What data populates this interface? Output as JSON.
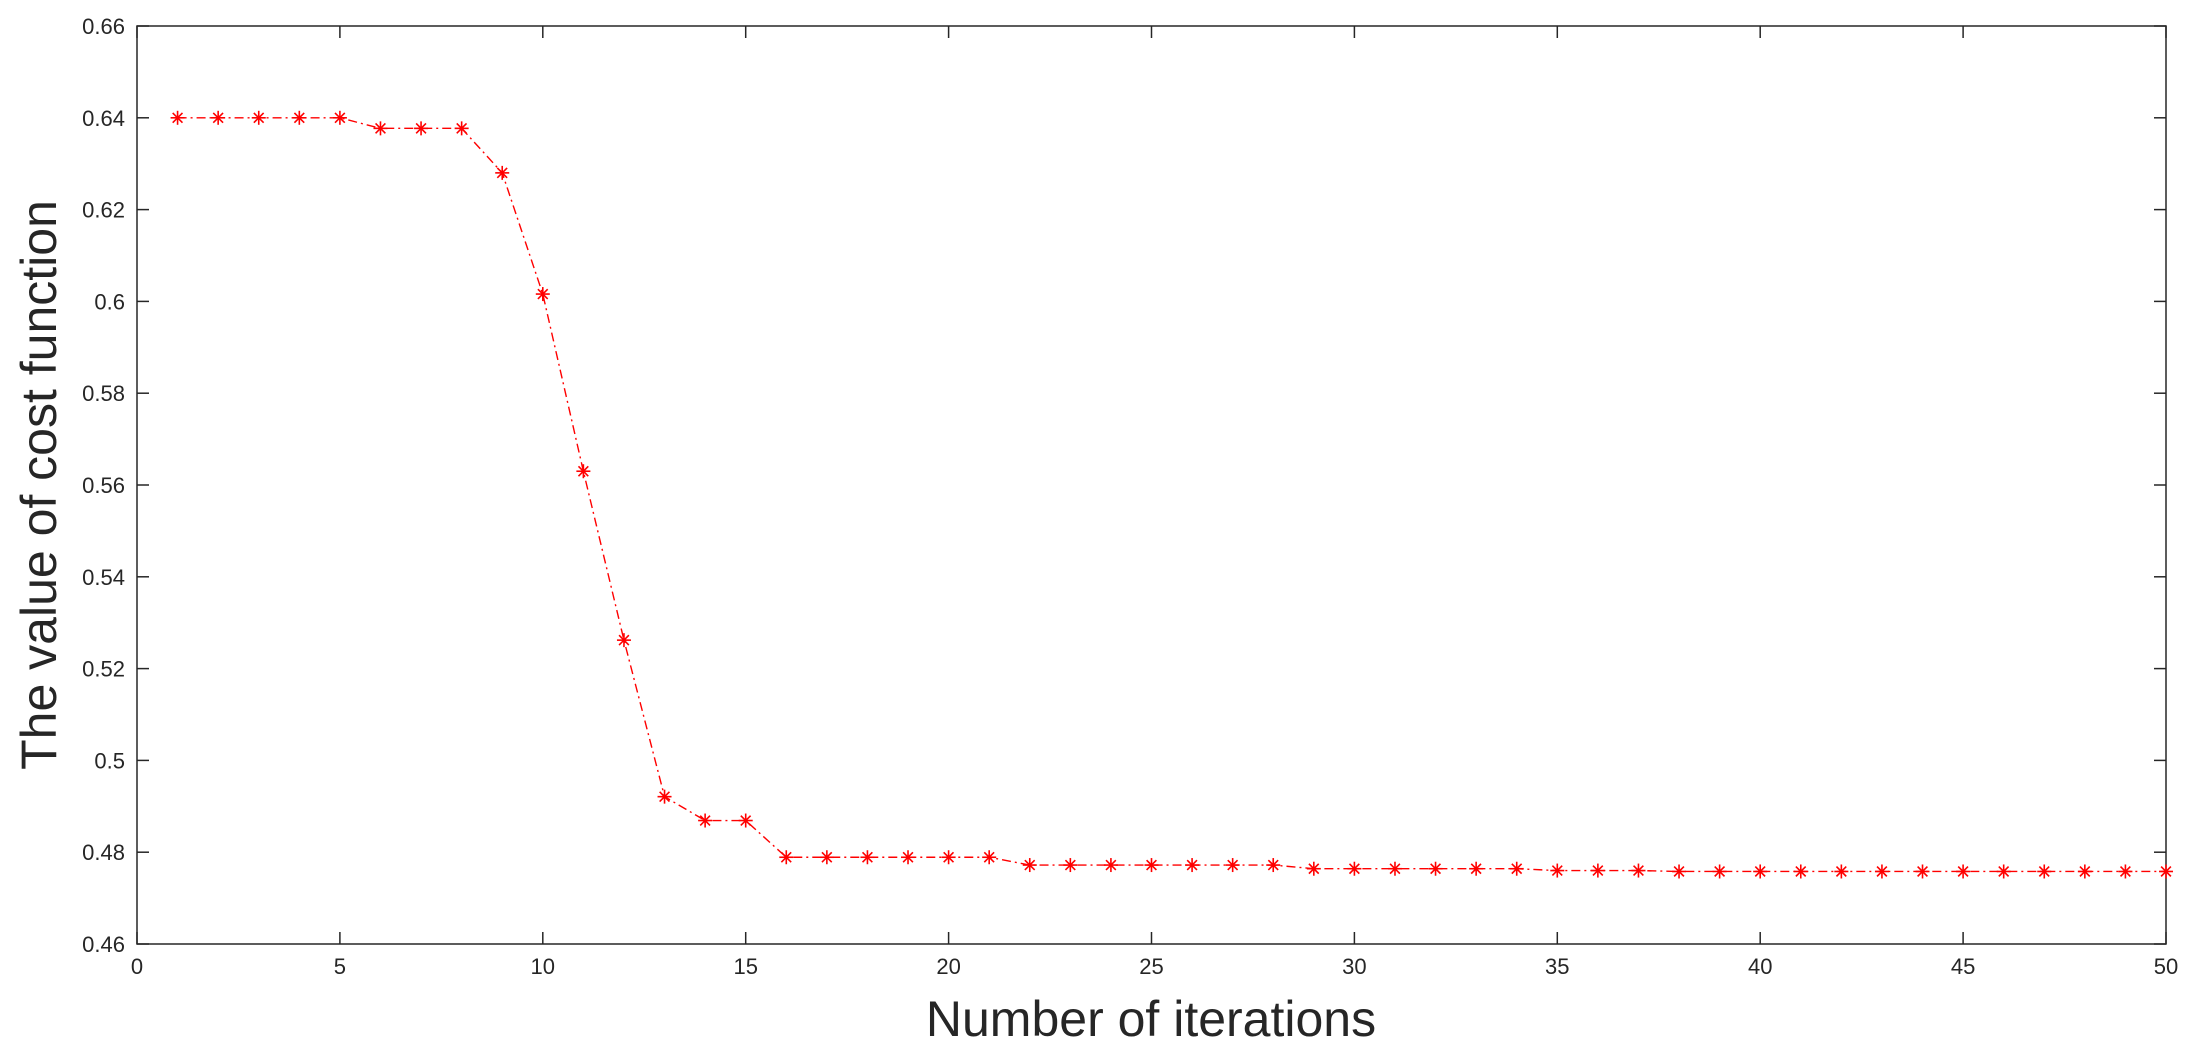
{
  "chart_data": {
    "type": "line",
    "title": "",
    "xlabel": "Number of iterations",
    "ylabel": "The value of cost function",
    "xlim": [
      0,
      50
    ],
    "ylim": [
      0.46,
      0.66
    ],
    "xticks": [
      0,
      5,
      10,
      15,
      20,
      25,
      30,
      35,
      40,
      45,
      50
    ],
    "yticks": [
      0.46,
      0.48,
      0.5,
      0.52,
      0.54,
      0.56,
      0.58,
      0.6,
      0.62,
      0.64,
      0.66
    ],
    "xtick_labels": [
      "0",
      "5",
      "10",
      "15",
      "20",
      "25",
      "30",
      "35",
      "40",
      "45",
      "50"
    ],
    "ytick_labels": [
      "0.46",
      "0.48",
      "0.5",
      "0.52",
      "0.54",
      "0.56",
      "0.58",
      "0.6",
      "0.62",
      "0.64",
      "0.66"
    ],
    "grid": false,
    "legend": "none",
    "series": [
      {
        "color": "#ff0000",
        "line_style": "dash-dot",
        "marker": "asterisk",
        "x": [
          1,
          2,
          3,
          4,
          5,
          6,
          7,
          8,
          9,
          10,
          11,
          12,
          13,
          14,
          15,
          16,
          17,
          18,
          19,
          20,
          21,
          22,
          23,
          24,
          25,
          26,
          27,
          28,
          29,
          30,
          31,
          32,
          33,
          34,
          35,
          36,
          37,
          38,
          39,
          40,
          41,
          42,
          43,
          44,
          45,
          46,
          47,
          48,
          49,
          50
        ],
        "y": [
          0.64,
          0.64,
          0.64,
          0.64,
          0.64,
          0.6377,
          0.6377,
          0.6377,
          0.628,
          0.6016,
          0.563,
          0.5262,
          0.4921,
          0.4869,
          0.4869,
          0.4789,
          0.4789,
          0.4789,
          0.4789,
          0.4789,
          0.4789,
          0.4772,
          0.4772,
          0.4772,
          0.4772,
          0.4772,
          0.4772,
          0.4772,
          0.4764,
          0.4764,
          0.4764,
          0.4764,
          0.4764,
          0.4764,
          0.476,
          0.476,
          0.476,
          0.4758,
          0.4758,
          0.4758,
          0.4758,
          0.4758,
          0.4758,
          0.4758,
          0.4758,
          0.4758,
          0.4758,
          0.4758,
          0.4758,
          0.4758
        ]
      }
    ]
  },
  "style": {
    "axis_color": "#262626",
    "series_color": "#ff0000",
    "background": "#ffffff"
  }
}
